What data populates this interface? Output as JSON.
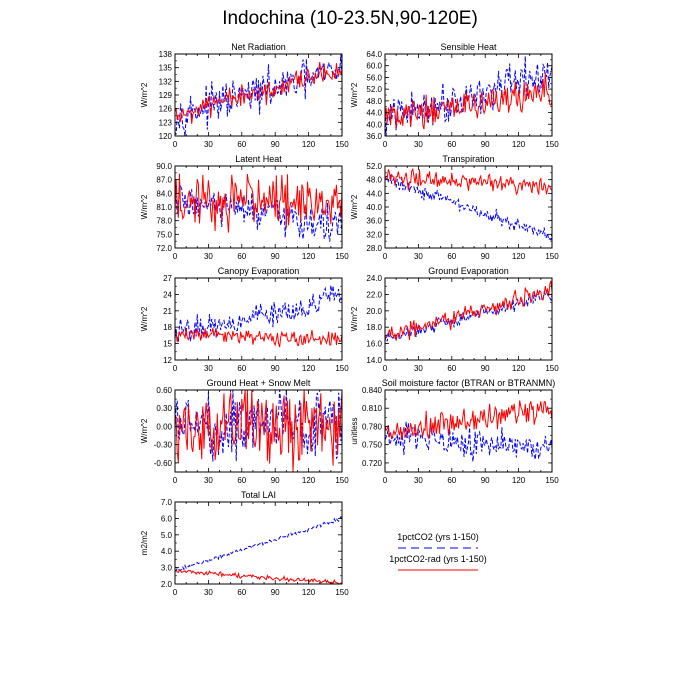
{
  "title": "Indochina (10-23.5N,90-120E)",
  "colors": {
    "series1": "#0000ff",
    "series2": "#ff0000"
  },
  "legend": [
    {
      "label": "1pctCO2 (yrs 1-150)",
      "color": "#0000ff",
      "style": "dashed"
    },
    {
      "label": "1pctCO2-rad (yrs 1-150)",
      "color": "#ff0000",
      "style": "solid"
    }
  ],
  "chart_data": [
    {
      "type": "line",
      "title": "Net Radiation",
      "ylabel": "W/m^2",
      "xlim": [
        0,
        150
      ],
      "xticks": [
        "0",
        "30",
        "60",
        "90",
        "120",
        "150"
      ],
      "ylim": [
        120,
        138
      ],
      "yticks": [
        "120",
        "123",
        "126",
        "129",
        "132",
        "135",
        "138"
      ],
      "series": [
        {
          "start": 124.5,
          "end": 134.5,
          "noise": 2.0,
          "values": []
        },
        {
          "start": 124.5,
          "end": 134.0,
          "noise": 1.3,
          "values": []
        }
      ]
    },
    {
      "type": "line",
      "title": "Sensible Heat",
      "ylabel": "W/m^2",
      "xlim": [
        0,
        150
      ],
      "xticks": [
        "0",
        "30",
        "60",
        "90",
        "120",
        "150"
      ],
      "ylim": [
        36,
        64
      ],
      "yticks": [
        "36.0",
        "40.0",
        "44.0",
        "48.0",
        "52.0",
        "56.0",
        "60.0",
        "64.0"
      ],
      "series": [
        {
          "start": 42.0,
          "end": 57.0,
          "noise": 3.2,
          "values": []
        },
        {
          "start": 42.0,
          "end": 51.0,
          "noise": 2.5,
          "values": []
        }
      ]
    },
    {
      "type": "line",
      "title": "Latent Heat",
      "ylabel": "W/m^2",
      "xlim": [
        0,
        150
      ],
      "xticks": [
        "0",
        "30",
        "60",
        "90",
        "120",
        "150"
      ],
      "ylim": [
        72,
        90
      ],
      "yticks": [
        "72.0",
        "75.0",
        "78.0",
        "81.0",
        "84.0",
        "87.0",
        "90.0"
      ],
      "series": [
        {
          "start": 82.5,
          "end": 76.5,
          "noise": 2.0,
          "values": []
        },
        {
          "start": 82.5,
          "end": 82.0,
          "noise": 2.8,
          "values": []
        }
      ]
    },
    {
      "type": "line",
      "title": "Transpiration",
      "ylabel": "W/m^2",
      "xlim": [
        0,
        150
      ],
      "xticks": [
        "0",
        "30",
        "60",
        "90",
        "120",
        "150"
      ],
      "ylim": [
        28,
        52
      ],
      "yticks": [
        "28.0",
        "32.0",
        "36.0",
        "40.0",
        "44.0",
        "48.0",
        "52.0"
      ],
      "series": [
        {
          "start": 48.5,
          "end": 31.0,
          "noise": 1.0,
          "values": []
        },
        {
          "start": 48.5,
          "end": 46.0,
          "noise": 1.3,
          "values": []
        }
      ]
    },
    {
      "type": "line",
      "title": "Canopy Evaporation",
      "ylabel": "W/m^2",
      "xlim": [
        0,
        150
      ],
      "xticks": [
        "0",
        "30",
        "60",
        "90",
        "120",
        "150"
      ],
      "ylim": [
        12,
        27
      ],
      "yticks": [
        "12",
        "15",
        "18",
        "21",
        "24",
        "27"
      ],
      "series": [
        {
          "start": 16.8,
          "end": 23.5,
          "noise": 1.2,
          "values": []
        },
        {
          "start": 16.8,
          "end": 15.5,
          "noise": 0.8,
          "values": []
        }
      ]
    },
    {
      "type": "line",
      "title": "Ground Evaporation",
      "ylabel": "W/m^2",
      "xlim": [
        0,
        150
      ],
      "xticks": [
        "0",
        "30",
        "60",
        "90",
        "120",
        "150"
      ],
      "ylim": [
        14,
        24
      ],
      "yticks": [
        "14.0",
        "16.0",
        "18.0",
        "20.0",
        "22.0",
        "24.0"
      ],
      "series": [
        {
          "start": 16.5,
          "end": 22.0,
          "noise": 0.4,
          "values": []
        },
        {
          "start": 16.8,
          "end": 22.5,
          "noise": 0.5,
          "values": []
        }
      ]
    },
    {
      "type": "line",
      "title": "Ground Heat + Snow Melt",
      "ylabel": "W/m^2",
      "xlim": [
        0,
        150
      ],
      "xticks": [
        "0",
        "30",
        "60",
        "90",
        "120",
        "150"
      ],
      "ylim": [
        -0.75,
        0.6
      ],
      "yticks": [
        "-0.60",
        "-0.30",
        "0.00",
        "0.30",
        "0.60"
      ],
      "series": [
        {
          "start": 0.0,
          "end": 0.05,
          "noise": 0.28,
          "values": []
        },
        {
          "start": 0.0,
          "end": 0.0,
          "noise": 0.3,
          "values": []
        }
      ]
    },
    {
      "type": "line",
      "title": "Soil moisture factor (BTRAN or BTRANMN)",
      "ylabel": "unitless",
      "xlim": [
        0,
        150
      ],
      "xticks": [
        "0",
        "30",
        "60",
        "90",
        "120",
        "150"
      ],
      "ylim": [
        0.705,
        0.84
      ],
      "yticks": [
        "0.720",
        "0.750",
        "0.780",
        "0.810",
        "0.840"
      ],
      "series": [
        {
          "start": 0.77,
          "end": 0.74,
          "noise": 0.012,
          "values": []
        },
        {
          "start": 0.765,
          "end": 0.812,
          "noise": 0.012,
          "values": []
        }
      ]
    },
    {
      "type": "line",
      "title": "Total LAI",
      "ylabel": "m2/m2",
      "xlim": [
        0,
        150
      ],
      "xticks": [
        "0",
        "30",
        "60",
        "90",
        "120",
        "150"
      ],
      "ylim": [
        2.0,
        7.0
      ],
      "yticks": [
        "2.0",
        "3.0",
        "4.0",
        "5.0",
        "6.0",
        "7.0"
      ],
      "series": [
        {
          "start": 2.8,
          "end": 6.0,
          "noise": 0.06,
          "values": []
        },
        {
          "start": 2.8,
          "end": 2.05,
          "noise": 0.06,
          "values": []
        }
      ]
    }
  ]
}
